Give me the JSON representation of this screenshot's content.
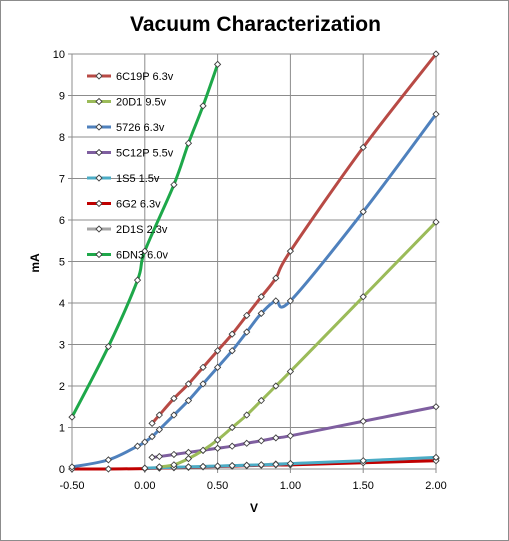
{
  "chart_data": {
    "type": "line",
    "title": "Vacuum Characterization",
    "xlabel": "V",
    "ylabel": "mA",
    "xlim": [
      -0.5,
      2.0
    ],
    "ylim": [
      0,
      10
    ],
    "xticks": [
      "-0.50",
      "0.00",
      "0.50",
      "1.00",
      "1.50",
      "2.00"
    ],
    "yticks": [
      "0",
      "1",
      "2",
      "3",
      "4",
      "5",
      "6",
      "7",
      "8",
      "9",
      "10"
    ],
    "grid": true,
    "legend_position": "upper-left",
    "series": [
      {
        "name": "6C19P 6.3v",
        "color": "#b84a45",
        "x": [
          0.05,
          0.1,
          0.2,
          0.3,
          0.4,
          0.5,
          0.6,
          0.7,
          0.8,
          0.9,
          1.0,
          1.5,
          2.0
        ],
        "y": [
          1.1,
          1.3,
          1.7,
          2.05,
          2.45,
          2.85,
          3.25,
          3.7,
          4.15,
          4.6,
          5.25,
          7.75,
          10.0
        ]
      },
      {
        "name": "20D1  9.5v",
        "color": "#9bbb59",
        "x": [
          0.1,
          0.2,
          0.3,
          0.4,
          0.5,
          0.6,
          0.7,
          0.8,
          0.9,
          1.0,
          1.5,
          2.0
        ],
        "y": [
          0.05,
          0.1,
          0.25,
          0.45,
          0.7,
          1.0,
          1.3,
          1.65,
          2.0,
          2.35,
          4.15,
          5.95
        ]
      },
      {
        "name": "5726  6.3v",
        "color": "#4f81bd",
        "x": [
          -0.5,
          -0.25,
          -0.05,
          0.0,
          0.05,
          0.1,
          0.2,
          0.3,
          0.4,
          0.5,
          0.6,
          0.7,
          0.8,
          0.9,
          1.0,
          1.5,
          2.0
        ],
        "y": [
          0.05,
          0.22,
          0.55,
          0.65,
          0.78,
          0.95,
          1.3,
          1.65,
          2.05,
          2.45,
          2.85,
          3.3,
          3.75,
          4.05,
          4.05,
          6.2,
          8.55
        ]
      },
      {
        "name": "5C12P  5.5v",
        "color": "#7f5fa0",
        "x": [
          0.05,
          0.1,
          0.2,
          0.3,
          0.4,
          0.5,
          0.6,
          0.7,
          0.8,
          0.9,
          1.0,
          1.5,
          2.0
        ],
        "y": [
          0.28,
          0.3,
          0.35,
          0.4,
          0.45,
          0.5,
          0.55,
          0.62,
          0.68,
          0.75,
          0.8,
          1.15,
          1.5
        ]
      },
      {
        "name": "1S5  1.5v",
        "color": "#4bacc6",
        "x": [
          0.0,
          0.1,
          0.2,
          0.3,
          0.4,
          0.5,
          0.6,
          0.7,
          0.8,
          0.9,
          1.0,
          1.5,
          2.0
        ],
        "y": [
          0.02,
          0.03,
          0.04,
          0.05,
          0.06,
          0.07,
          0.08,
          0.09,
          0.1,
          0.11,
          0.13,
          0.2,
          0.28
        ]
      },
      {
        "name": "6G2  6.3v",
        "color": "#c00000",
        "x": [
          -0.5,
          -0.25,
          0.0,
          0.1,
          0.2,
          0.3,
          0.4,
          0.5,
          0.6,
          0.7,
          0.8,
          0.9,
          1.0,
          1.5,
          2.0
        ],
        "y": [
          0.0,
          0.0,
          0.01,
          0.02,
          0.03,
          0.04,
          0.05,
          0.06,
          0.07,
          0.08,
          0.09,
          0.1,
          0.1,
          0.15,
          0.2
        ]
      },
      {
        "name": "2D1S  2.3v",
        "color": "#a5a5a5",
        "x": [
          0.0,
          0.1,
          0.2,
          0.3,
          0.4,
          0.5,
          0.6,
          0.7,
          0.8,
          0.9,
          1.0,
          1.5,
          2.0
        ],
        "y": [
          0.02,
          0.03,
          0.04,
          0.05,
          0.06,
          0.07,
          0.08,
          0.09,
          0.1,
          0.12,
          0.13,
          0.18,
          0.25
        ]
      },
      {
        "name": "6DN3  6.0v",
        "color": "#1ea84a",
        "x": [
          -0.5,
          -0.25,
          -0.05,
          0.0,
          0.2,
          0.3,
          0.4,
          0.5
        ],
        "y": [
          1.25,
          2.95,
          4.55,
          5.25,
          6.85,
          7.85,
          8.75,
          9.75
        ]
      }
    ]
  }
}
